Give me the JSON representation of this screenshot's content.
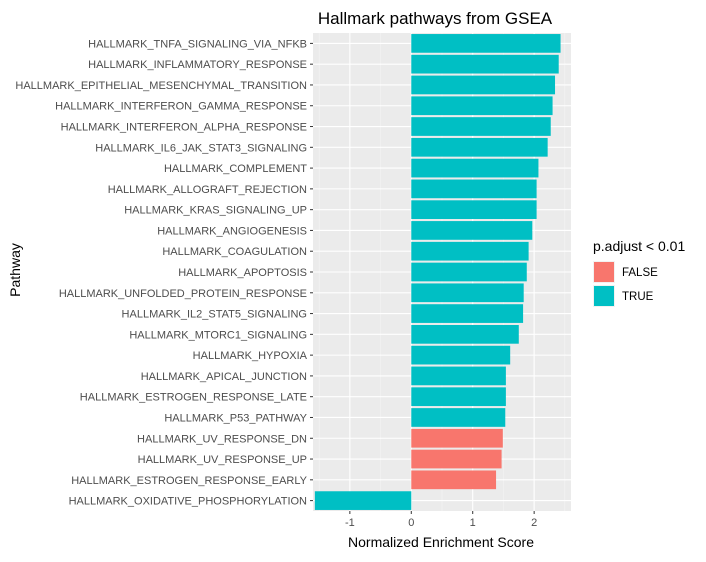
{
  "chart_data": {
    "type": "bar",
    "orientation": "horizontal",
    "title": "Hallmark pathways from GSEA",
    "xlabel": "Normalized Enrichment Score",
    "ylabel": "Pathway",
    "xlim": [
      -1.6,
      2.6
    ],
    "xticks": [
      -1,
      0,
      1,
      2
    ],
    "grid": true,
    "legend": {
      "title": "p.adjust < 0.01",
      "position": "right",
      "entries": [
        {
          "label": "FALSE",
          "color": "#F8766D"
        },
        {
          "label": "TRUE",
          "color": "#00BFC4"
        }
      ]
    },
    "categories": [
      "HALLMARK_TNFA_SIGNALING_VIA_NFKB",
      "HALLMARK_INFLAMMATORY_RESPONSE",
      "HALLMARK_EPITHELIAL_MESENCHYMAL_TRANSITION",
      "HALLMARK_INTERFERON_GAMMA_RESPONSE",
      "HALLMARK_INTERFERON_ALPHA_RESPONSE",
      "HALLMARK_IL6_JAK_STAT3_SIGNALING",
      "HALLMARK_COMPLEMENT",
      "HALLMARK_ALLOGRAFT_REJECTION",
      "HALLMARK_KRAS_SIGNALING_UP",
      "HALLMARK_ANGIOGENESIS",
      "HALLMARK_COAGULATION",
      "HALLMARK_APOPTOSIS",
      "HALLMARK_UNFOLDED_PROTEIN_RESPONSE",
      "HALLMARK_IL2_STAT5_SIGNALING",
      "HALLMARK_MTORC1_SIGNALING",
      "HALLMARK_HYPOXIA",
      "HALLMARK_APICAL_JUNCTION",
      "HALLMARK_ESTROGEN_RESPONSE_LATE",
      "HALLMARK_P53_PATHWAY",
      "HALLMARK_UV_RESPONSE_DN",
      "HALLMARK_UV_RESPONSE_UP",
      "HALLMARK_ESTROGEN_RESPONSE_EARLY",
      "HALLMARK_OXIDATIVE_PHOSPHORYLATION"
    ],
    "values": [
      2.43,
      2.4,
      2.34,
      2.3,
      2.27,
      2.22,
      2.07,
      2.04,
      2.04,
      1.97,
      1.91,
      1.88,
      1.83,
      1.82,
      1.75,
      1.61,
      1.54,
      1.54,
      1.53,
      1.49,
      1.47,
      1.38,
      -1.57
    ],
    "significant": [
      true,
      true,
      true,
      true,
      true,
      true,
      true,
      true,
      true,
      true,
      true,
      true,
      true,
      true,
      true,
      true,
      true,
      true,
      true,
      false,
      false,
      false,
      true
    ]
  }
}
